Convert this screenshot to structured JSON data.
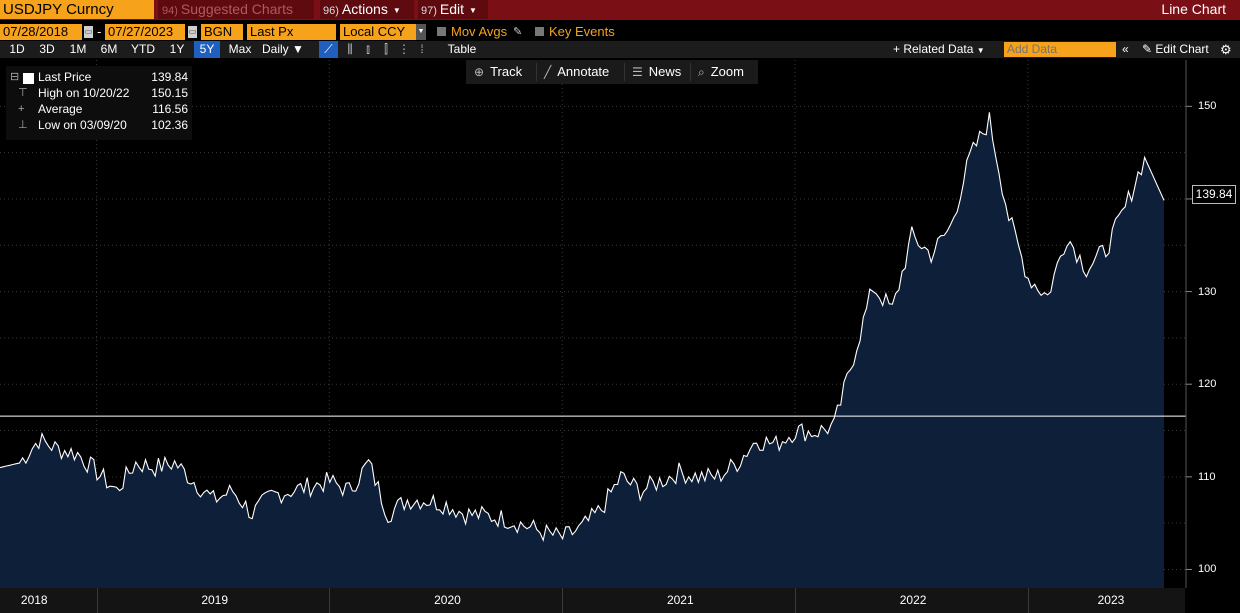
{
  "header": {
    "security": "USDJPY Curncy",
    "suggested": {
      "num": "94)",
      "label": "Suggested Charts"
    },
    "actions": {
      "num": "96)",
      "label": "Actions"
    },
    "edit": {
      "num": "97)",
      "label": "Edit"
    },
    "chart_type": "Line Chart"
  },
  "controls": {
    "start_date": "07/28/2018",
    "date_sep": "-",
    "end_date": "07/27/2023",
    "source": "BGN",
    "field": "Last Px",
    "currency": "Local CCY",
    "mov_avgs": "Mov Avgs",
    "key_events": "Key Events"
  },
  "ranges": [
    "1D",
    "3D",
    "1M",
    "6M",
    "YTD",
    "1Y",
    "5Y",
    "Max"
  ],
  "active_range": "5Y",
  "frequency": "Daily",
  "table_label": "Table",
  "related_data": "Related Data",
  "add_data_placeholder": "Add Data",
  "edit_chart": "Edit Chart",
  "tools": {
    "track": "Track",
    "annotate": "Annotate",
    "news": "News",
    "zoom": "Zoom"
  },
  "legend": {
    "last": {
      "label": "Last Price",
      "value": "139.84"
    },
    "high": {
      "label": "High on 10/20/22",
      "value": "150.15"
    },
    "avg": {
      "label": "Average",
      "value": "116.56"
    },
    "low": {
      "label": "Low on 03/09/20",
      "value": "102.36"
    }
  },
  "last_label": "139.84",
  "colors": {
    "accent": "#f7a21b",
    "titlebar": "#7a0f15",
    "area": "#0e1f3a",
    "line": "#ffffff"
  },
  "chart_data": {
    "type": "area",
    "x": [
      "2018-07",
      "2018-08",
      "2018-09",
      "2018-10",
      "2018-11",
      "2018-12",
      "2019-01",
      "2019-02",
      "2019-03",
      "2019-04",
      "2019-05",
      "2019-06",
      "2019-07",
      "2019-08",
      "2019-09",
      "2019-10",
      "2019-11",
      "2019-12",
      "2020-01",
      "2020-02",
      "2020-03",
      "2020-04",
      "2020-05",
      "2020-06",
      "2020-07",
      "2020-08",
      "2020-09",
      "2020-10",
      "2020-11",
      "2020-12",
      "2021-01",
      "2021-02",
      "2021-03",
      "2021-04",
      "2021-05",
      "2021-06",
      "2021-07",
      "2021-08",
      "2021-09",
      "2021-10",
      "2021-11",
      "2021-12",
      "2022-01",
      "2022-02",
      "2022-03",
      "2022-04",
      "2022-05",
      "2022-06",
      "2022-07",
      "2022-08",
      "2022-09",
      "2022-10",
      "2022-11",
      "2022-12",
      "2023-01",
      "2023-02",
      "2023-03",
      "2023-04",
      "2023-05",
      "2023-06",
      "2023-07"
    ],
    "values": [
      111.0,
      111.5,
      114.0,
      113.0,
      112.5,
      110.5,
      108.5,
      111.5,
      111.0,
      111.5,
      109.5,
      107.5,
      108.5,
      106.0,
      108.0,
      108.5,
      109.0,
      109.5,
      108.5,
      111.5,
      106.0,
      107.5,
      107.5,
      107.0,
      106.0,
      105.8,
      105.5,
      104.8,
      104.0,
      103.4,
      104.5,
      106.5,
      110.0,
      108.5,
      109.5,
      110.5,
      110.0,
      110.0,
      111.5,
      114.0,
      113.5,
      115.0,
      114.8,
      115.5,
      123.0,
      130.5,
      128.0,
      136.0,
      134.0,
      137.0,
      144.5,
      148.5,
      138.0,
      131.5,
      129.5,
      136.0,
      132.5,
      134.5,
      139.0,
      144.5,
      139.84
    ],
    "ylim": [
      98,
      155
    ],
    "yticks": [
      100,
      110,
      120,
      130,
      140,
      150
    ],
    "average": 116.56,
    "high": 150.15,
    "low": 102.36,
    "last": 139.84,
    "year_labels": [
      "2018",
      "2019",
      "2020",
      "2021",
      "2022",
      "2023"
    ],
    "grid": true,
    "legend": "top-left"
  }
}
